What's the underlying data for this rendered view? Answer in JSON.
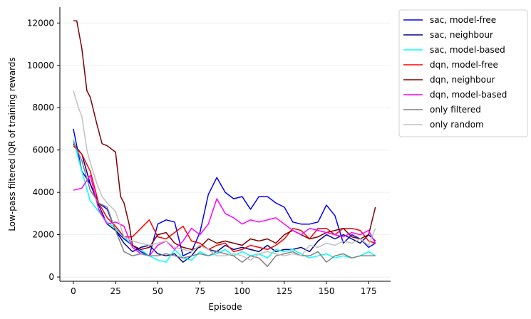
{
  "chart_data": {
    "type": "line",
    "title": "",
    "xlabel": "Episode",
    "ylabel": "Low-pass filtered IQR of training rewards",
    "xlim": [
      -8,
      188
    ],
    "ylim": [
      -200,
      12750
    ],
    "xticks": [
      0,
      25,
      50,
      75,
      100,
      125,
      150,
      175
    ],
    "yticks": [
      0,
      2000,
      4000,
      6000,
      8000,
      10000,
      12000
    ],
    "grid": true,
    "legend": "outside-top-right",
    "series": [
      {
        "name": "sac, model-free",
        "color": "#0000ff",
        "x": [
          0,
          5,
          10,
          15,
          20,
          25,
          30,
          35,
          40,
          45,
          50,
          55,
          60,
          65,
          70,
          75,
          80,
          85,
          90,
          95,
          100,
          105,
          110,
          115,
          120,
          125,
          130,
          135,
          140,
          145,
          150,
          155,
          160,
          165,
          170,
          175,
          179
        ],
        "y": [
          7000,
          5000,
          4400,
          3500,
          3200,
          2200,
          1800,
          1500,
          1200,
          1000,
          2500,
          2700,
          2600,
          1000,
          1200,
          2100,
          3900,
          4700,
          4000,
          3700,
          3800,
          3200,
          3800,
          3800,
          3500,
          3300,
          2600,
          2500,
          2500,
          2600,
          3400,
          2900,
          1600,
          2000,
          1800,
          1400,
          1600
        ]
      },
      {
        "name": "sac, neighbour",
        "color": "#00008b",
        "x": [
          0,
          5,
          10,
          15,
          20,
          25,
          30,
          35,
          40,
          45,
          50,
          55,
          60,
          65,
          70,
          75,
          80,
          85,
          90,
          95,
          100,
          105,
          110,
          115,
          120,
          125,
          130,
          135,
          140,
          145,
          150,
          155,
          160,
          165,
          170,
          175,
          179
        ],
        "y": [
          6300,
          5800,
          4400,
          3400,
          2500,
          2200,
          1600,
          1200,
          1400,
          1500,
          1100,
          1000,
          1100,
          700,
          1000,
          1500,
          1300,
          1200,
          1500,
          1300,
          1400,
          1300,
          1200,
          1500,
          1200,
          1300,
          1300,
          1400,
          1200,
          1700,
          2000,
          1800,
          2000,
          1800,
          1600,
          2000,
          1700
        ]
      },
      {
        "name": "sac, model-based",
        "color": "#00ffff",
        "x": [
          0,
          5,
          10,
          15,
          20,
          25,
          30,
          35,
          40,
          45,
          50,
          55,
          60,
          65,
          70,
          75,
          80,
          85,
          90,
          95,
          100,
          105,
          110,
          115,
          120,
          125,
          130,
          135,
          140,
          145,
          150,
          155,
          160,
          165,
          170,
          175,
          179
        ],
        "y": [
          6500,
          5000,
          3600,
          3100,
          2600,
          2300,
          1900,
          1500,
          1300,
          1000,
          800,
          700,
          1300,
          900,
          800,
          1200,
          1000,
          1100,
          1300,
          1000,
          1200,
          1000,
          1100,
          900,
          1300,
          1200,
          1300,
          1100,
          900,
          1000,
          1100,
          900,
          1000,
          900,
          1000,
          1200,
          1000
        ]
      },
      {
        "name": "dqn, model-free",
        "color": "#ff0000",
        "x": [
          0,
          5,
          10,
          15,
          20,
          25,
          30,
          35,
          40,
          45,
          50,
          55,
          60,
          65,
          70,
          75,
          80,
          85,
          90,
          95,
          100,
          105,
          110,
          115,
          120,
          125,
          130,
          135,
          140,
          145,
          150,
          155,
          160,
          165,
          170,
          175,
          179
        ],
        "y": [
          6200,
          5800,
          5000,
          3500,
          2800,
          2400,
          1900,
          1900,
          2300,
          2700,
          1900,
          1800,
          2100,
          2400,
          1700,
          1600,
          1300,
          1500,
          1600,
          1200,
          1300,
          1500,
          1400,
          1300,
          1500,
          1800,
          2300,
          2200,
          1800,
          2300,
          2300,
          2000,
          2300,
          2300,
          2200,
          1700,
          1600
        ]
      },
      {
        "name": "dqn, neighbour",
        "color": "#800000",
        "x": [
          0,
          2,
          5,
          8,
          10,
          14,
          17,
          20,
          25,
          28,
          30,
          33,
          35,
          40,
          45,
          50,
          55,
          60,
          65,
          70,
          75,
          80,
          85,
          90,
          95,
          100,
          105,
          110,
          115,
          120,
          125,
          130,
          135,
          140,
          145,
          150,
          155,
          160,
          165,
          170,
          175,
          179
        ],
        "y": [
          12100,
          12100,
          10800,
          8800,
          8500,
          7200,
          6300,
          6200,
          5900,
          3800,
          3500,
          2500,
          1500,
          1300,
          1400,
          2000,
          2100,
          1600,
          1400,
          1300,
          1400,
          1800,
          1600,
          1700,
          1600,
          1500,
          1800,
          1700,
          1800,
          1600,
          2000,
          2200,
          2000,
          1800,
          1900,
          2100,
          2200,
          2300,
          1900,
          1800,
          2000,
          3300
        ]
      },
      {
        "name": "dqn, model-based",
        "color": "#ff00ff",
        "x": [
          0,
          5,
          10,
          15,
          20,
          25,
          30,
          35,
          40,
          45,
          50,
          55,
          60,
          65,
          70,
          75,
          80,
          85,
          90,
          95,
          100,
          105,
          110,
          115,
          120,
          125,
          130,
          135,
          140,
          145,
          150,
          155,
          160,
          165,
          170,
          175,
          179
        ],
        "y": [
          4100,
          4200,
          4800,
          3200,
          2500,
          2600,
          2400,
          1400,
          1100,
          1000,
          1500,
          1700,
          1300,
          1700,
          2300,
          2000,
          2500,
          3700,
          3000,
          2800,
          2500,
          2700,
          2600,
          2700,
          2800,
          2500,
          2200,
          2000,
          2300,
          2200,
          2100,
          2000,
          1900,
          2100,
          2000,
          2200,
          1600
        ]
      },
      {
        "name": "only filtered",
        "color": "#808080",
        "x": [
          0,
          5,
          10,
          15,
          20,
          25,
          30,
          35,
          40,
          45,
          50,
          55,
          60,
          65,
          70,
          75,
          80,
          85,
          90,
          95,
          100,
          105,
          110,
          115,
          120,
          125,
          130,
          135,
          140,
          145,
          150,
          155,
          160,
          165,
          170,
          175,
          179
        ],
        "y": [
          6400,
          5500,
          4100,
          3500,
          3300,
          2200,
          1200,
          1000,
          1100,
          1000,
          1000,
          1100,
          1000,
          900,
          1000,
          1100,
          1000,
          1200,
          1100,
          1000,
          700,
          1000,
          900,
          500,
          1000,
          1100,
          1200,
          1000,
          1000,
          1200,
          700,
          1000,
          1100,
          900,
          1000,
          1000,
          1000
        ]
      },
      {
        "name": "only random",
        "color": "#c0c0c0",
        "x": [
          0,
          3,
          5,
          8,
          10,
          14,
          17,
          20,
          25,
          30,
          35,
          40,
          45,
          50,
          55,
          60,
          65,
          70,
          75,
          80,
          85,
          90,
          95,
          100,
          105,
          110,
          115,
          120,
          125,
          130,
          135,
          140,
          145,
          150,
          155,
          160,
          165,
          170,
          175,
          179
        ],
        "y": [
          8800,
          8000,
          7600,
          6000,
          5400,
          4400,
          3800,
          3500,
          3100,
          1900,
          1700,
          1600,
          1500,
          1600,
          1700,
          1400,
          1300,
          1200,
          1500,
          1300,
          1000,
          1000,
          1100,
          1000,
          800,
          1100,
          1200,
          1100,
          1000,
          1100,
          1000,
          1500,
          1400,
          1600,
          1500,
          1700,
          1600,
          1800,
          1500,
          2300
        ]
      }
    ]
  }
}
